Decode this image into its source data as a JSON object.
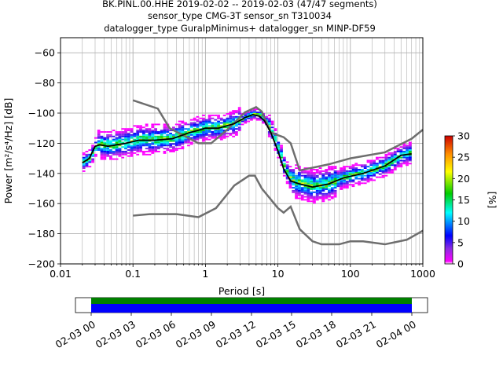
{
  "title_lines": [
    "BK.PINL.00.HHE   2019-02-02 -- 2019-02-03  (47/47 segments)",
    "sensor_type CMG-3T sensor_sn T310034",
    "datalogger_type GuralpMinimus+ datalogger_sn MINP-DF59"
  ],
  "chart_data": {
    "type": "heatmap",
    "xlabel": "Period [s]",
    "ylabel": "Power [m²/s⁴/Hz] [dB]",
    "xscale": "log",
    "xlim": [
      0.01,
      1000
    ],
    "ylim": [
      -200,
      -50
    ],
    "x_ticks": [
      0.01,
      0.1,
      1,
      10,
      100,
      1000
    ],
    "x_tick_labels": [
      "0.01",
      "0.1",
      "1",
      "10",
      "100",
      "1000"
    ],
    "y_ticks": [
      -200,
      -180,
      -160,
      -140,
      -120,
      -100,
      -80,
      -60
    ],
    "y_tick_labels": [
      "−200",
      "−180",
      "−160",
      "−140",
      "−120",
      "−100",
      "−80",
      "−60"
    ],
    "grid": true,
    "colorbar": {
      "label": "[%]",
      "range": [
        0,
        30
      ],
      "ticks": [
        0,
        5,
        10,
        15,
        20,
        25,
        30
      ],
      "tick_labels": [
        "0",
        "5",
        "10",
        "15",
        "20",
        "25",
        "30"
      ]
    },
    "mean_curve": {
      "color": "#000000",
      "points": [
        [
          0.02,
          -133
        ],
        [
          0.025,
          -130
        ],
        [
          0.03,
          -122
        ],
        [
          0.035,
          -121
        ],
        [
          0.045,
          -122
        ],
        [
          0.06,
          -121
        ],
        [
          0.08,
          -120
        ],
        [
          0.12,
          -118
        ],
        [
          0.2,
          -118
        ],
        [
          0.35,
          -117
        ],
        [
          0.6,
          -113
        ],
        [
          1,
          -110
        ],
        [
          1.5,
          -110
        ],
        [
          2.5,
          -107
        ],
        [
          3.5,
          -103
        ],
        [
          4.5,
          -101
        ],
        [
          5.5,
          -102
        ],
        [
          6.5,
          -105
        ],
        [
          8,
          -113
        ],
        [
          10,
          -125
        ],
        [
          12,
          -137
        ],
        [
          15,
          -145
        ],
        [
          20,
          -147
        ],
        [
          30,
          -149
        ],
        [
          50,
          -147
        ],
        [
          80,
          -143
        ],
        [
          150,
          -140
        ],
        [
          300,
          -135
        ],
        [
          500,
          -128
        ],
        [
          700,
          -127
        ]
      ]
    },
    "noise_models": [
      {
        "color": "#6e6e6e",
        "points": [
          [
            0.1,
            -91.5
          ],
          [
            0.22,
            -97
          ],
          [
            0.32,
            -110
          ],
          [
            0.8,
            -120
          ],
          [
            1.2,
            -120
          ],
          [
            2,
            -111
          ],
          [
            3.5,
            -99.5
          ],
          [
            5,
            -96
          ],
          [
            6,
            -99
          ],
          [
            8,
            -113
          ],
          [
            12,
            -116
          ],
          [
            15,
            -120
          ],
          [
            20,
            -138
          ],
          [
            50,
            -134
          ],
          [
            100,
            -130
          ],
          [
            300,
            -126
          ],
          [
            700,
            -117
          ],
          [
            1000,
            -111
          ]
        ]
      },
      {
        "color": "#6e6e6e",
        "points": [
          [
            0.1,
            -168
          ],
          [
            0.17,
            -167
          ],
          [
            0.4,
            -167
          ],
          [
            0.8,
            -169
          ],
          [
            1.4,
            -163
          ],
          [
            2.5,
            -148
          ],
          [
            4,
            -141.5
          ],
          [
            4.8,
            -141.5
          ],
          [
            6,
            -150
          ],
          [
            10,
            -163
          ],
          [
            12,
            -166
          ],
          [
            15,
            -162
          ],
          [
            20,
            -177
          ],
          [
            30,
            -185
          ],
          [
            40,
            -187
          ],
          [
            70,
            -187
          ],
          [
            100,
            -185
          ],
          [
            150,
            -185
          ],
          [
            300,
            -187
          ],
          [
            600,
            -184
          ],
          [
            1000,
            -178
          ]
        ]
      }
    ]
  },
  "time_axis": {
    "tick_labels": [
      "02-03 00",
      "02-03 03",
      "02-03 06",
      "02-03 09",
      "02-03 12",
      "02-03 15",
      "02-03 18",
      "02-03 21",
      "02-04 00"
    ],
    "bar_colors": [
      "#008000",
      "#0000ff"
    ]
  }
}
